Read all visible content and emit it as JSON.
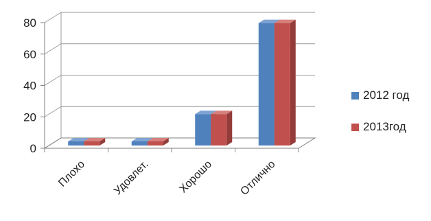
{
  "chart_data": {
    "type": "bar",
    "categories": [
      "Плохо",
      "Удовлет.",
      "Хорошо",
      "Отлично"
    ],
    "series": [
      {
        "name": "2012 год",
        "values": [
          0.5,
          1,
          20,
          78
        ]
      },
      {
        "name": "2013год",
        "values": [
          0.5,
          1,
          20,
          78
        ]
      }
    ],
    "title": "",
    "xlabel": "",
    "ylabel": "",
    "ylim": [
      0,
      80
    ],
    "yticks": [
      0,
      20,
      40,
      60,
      80
    ],
    "grid": true,
    "legend_position": "right",
    "colors": {
      "series": [
        "#4f81bd",
        "#c0504d"
      ],
      "series_side": [
        "#3a6494",
        "#943c3a"
      ],
      "series_top": [
        "#7fa3d3",
        "#d6807e"
      ],
      "grid": "#9a9a9a",
      "axis": "#7f7f7f"
    }
  }
}
